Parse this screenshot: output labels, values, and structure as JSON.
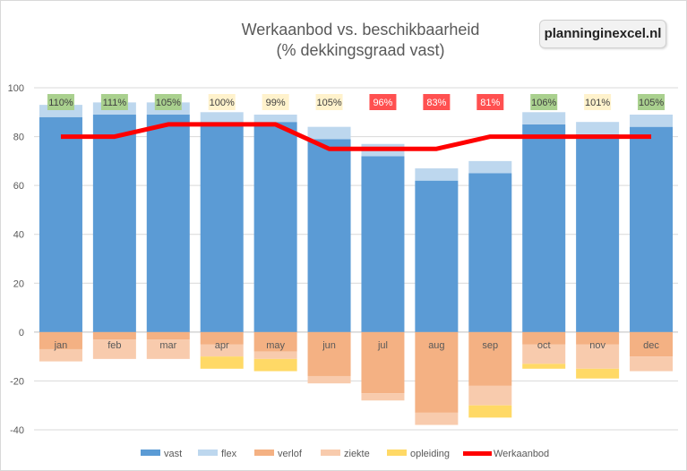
{
  "header": {
    "title_line1": "Werkaanbod vs. beschikbaarheid",
    "title_line2": "(% dekkingsgraad vast)",
    "brand": "planninginexcel.nl"
  },
  "colors": {
    "vast": "#5b9bd5",
    "flex": "#bdd7ee",
    "verlof": "#f4b183",
    "ziekte": "#f8cbad",
    "opleiding": "#ffd966",
    "werkaanbod": "#ff0000",
    "badge_green": "#a9d08e",
    "badge_yellow": "#fff2cc",
    "badge_red": "#ff5050"
  },
  "chart_data": {
    "type": "bar",
    "stacked": true,
    "title": "Werkaanbod vs. beschikbaarheid (% dekkingsgraad vast)",
    "categories": [
      "jan",
      "feb",
      "mar",
      "apr",
      "may",
      "jun",
      "jul",
      "aug",
      "sep",
      "oct",
      "nov",
      "dec"
    ],
    "ylim": [
      -40,
      100
    ],
    "yticks": [
      -40,
      -20,
      0,
      20,
      40,
      60,
      80,
      100
    ],
    "grid": true,
    "legend_position": "bottom",
    "series": [
      {
        "name": "vast",
        "type": "bar",
        "values": [
          88,
          89,
          89,
          86,
          86,
          79,
          72,
          62,
          65,
          85,
          81,
          84
        ]
      },
      {
        "name": "flex",
        "type": "bar",
        "values": [
          5,
          5,
          5,
          4,
          3,
          5,
          5,
          5,
          5,
          5,
          5,
          5
        ]
      },
      {
        "name": "verlof",
        "type": "bar",
        "values": [
          -7,
          -3,
          -3,
          -5,
          -8,
          -18,
          -25,
          -33,
          -22,
          -5,
          -5,
          -10
        ]
      },
      {
        "name": "ziekte",
        "type": "bar",
        "values": [
          -5,
          -8,
          -8,
          -5,
          -3,
          -3,
          -3,
          -5,
          -8,
          -8,
          -10,
          -6
        ]
      },
      {
        "name": "opleiding",
        "type": "bar",
        "values": [
          0,
          0,
          0,
          -5,
          -5,
          0,
          0,
          0,
          -5,
          -2,
          -4,
          0
        ]
      },
      {
        "name": "Werkaanbod",
        "type": "line",
        "values": [
          80,
          80,
          85,
          85,
          85,
          75,
          75,
          75,
          80,
          80,
          80,
          80
        ]
      }
    ],
    "coverage_labels": [
      "110%",
      "111%",
      "105%",
      "100%",
      "99%",
      "105%",
      "96%",
      "83%",
      "81%",
      "106%",
      "101%",
      "105%"
    ],
    "coverage_status": [
      "green",
      "green",
      "green",
      "yellow",
      "yellow",
      "yellow",
      "red",
      "red",
      "red",
      "green",
      "yellow",
      "green"
    ]
  }
}
